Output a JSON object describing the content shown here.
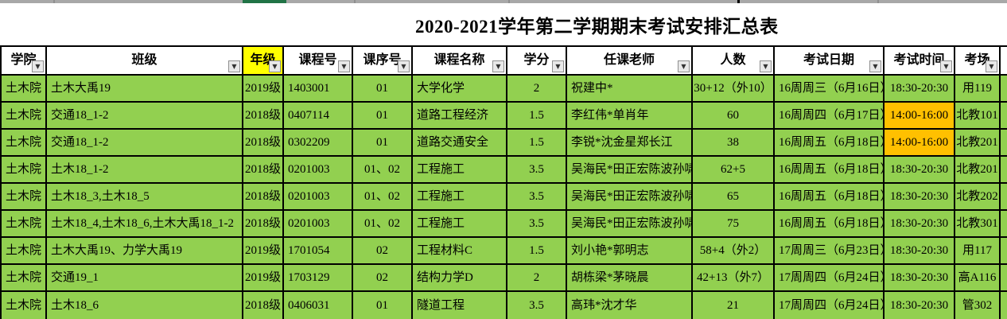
{
  "title": "2020-2021学年第二学期期末考试安排汇总表",
  "colors": {
    "row_green": "#92D050",
    "time_orange": "#FFC000",
    "grade_yellow": "#FFFF00",
    "strip_gray": "#A8A8A8",
    "active_column_green": "#217346",
    "border": "#000000"
  },
  "table": {
    "filter_icon": "▼",
    "columns": [
      {
        "key": "college",
        "label": "学院",
        "highlighted": false
      },
      {
        "key": "class",
        "label": "班级",
        "highlighted": false
      },
      {
        "key": "grade",
        "label": "年级",
        "highlighted": true
      },
      {
        "key": "course-id",
        "label": "课程号",
        "highlighted": false
      },
      {
        "key": "course-seq",
        "label": "课序号",
        "highlighted": false
      },
      {
        "key": "course-name",
        "label": "课程名称",
        "highlighted": false
      },
      {
        "key": "credits",
        "label": "学分",
        "highlighted": false
      },
      {
        "key": "teacher",
        "label": "任课老师",
        "highlighted": false
      },
      {
        "key": "count",
        "label": "人数",
        "highlighted": false
      },
      {
        "key": "exam-date",
        "label": "考试日期",
        "highlighted": false
      },
      {
        "key": "exam-time",
        "label": "考试时间",
        "highlighted": false
      },
      {
        "key": "exam-room",
        "label": "考场",
        "highlighted": false
      }
    ],
    "rows": [
      [
        "土木院",
        "土木大禹19",
        "2019级",
        "1403001",
        "01",
        "大学化学",
        "2",
        "祝建中*",
        "30+12（外10）",
        "16周周三（6月16日）",
        "18:30-20:30",
        "用119"
      ],
      [
        "土木院",
        "交通18_1-2",
        "2018级",
        "0407114",
        "01",
        "道路工程经济",
        "1.5",
        "李红伟*单肖年",
        "60",
        "16周周四（6月17日）",
        "14:00-16:00",
        "北教101"
      ],
      [
        "土木院",
        "交通18_1-2",
        "2018级",
        "0302209",
        "01",
        "道路交通安全",
        "1.5",
        "李锐*沈金星郑长江",
        "38",
        "16周周五（6月18日）",
        "14:00-16:00",
        "北教201"
      ],
      [
        "土木院",
        "土木18_1-2",
        "2018级",
        "0201003",
        "01、02",
        "工程施工",
        "3.5",
        "吴海民*田正宏陈波孙啸",
        "62+5",
        "16周周五（6月18日）",
        "18:30-20:30",
        "北教201"
      ],
      [
        "土木院",
        "土木18_3,土木18_5",
        "2018级",
        "0201003",
        "01、02",
        "工程施工",
        "3.5",
        "吴海民*田正宏陈波孙啸",
        "65",
        "16周周五（6月18日）",
        "18:30-20:30",
        "北教202"
      ],
      [
        "土木院",
        "土木18_4,土木18_6,土木大禹18_1-2",
        "2018级",
        "0201003",
        "01、02",
        "工程施工",
        "3.5",
        "吴海民*田正宏陈波孙啸",
        "75",
        "16周周五（6月18日）",
        "18:30-20:30",
        "北教301"
      ],
      [
        "土木院",
        "土木大禹19、力学大禹19",
        "2019级",
        "1701054",
        "02",
        "工程材料C",
        "1.5",
        "刘小艳*郭明志",
        "58+4（外2）",
        "17周周三（6月23日）",
        "18:30-20:30",
        "用117"
      ],
      [
        "土木院",
        "交通19_1",
        "2019级",
        "1703129",
        "02",
        "结构力学D",
        "2",
        "胡栋梁*茅晓晨",
        "42+13（外7）",
        "17周周四（6月24日）",
        "18:30-20:30",
        "高A116"
      ],
      [
        "土木院",
        "土木18_6",
        "2018级",
        "0406031",
        "01",
        "隧道工程",
        "3.5",
        "高玮*沈才华",
        "21",
        "17周周四（6月24日）",
        "18:30-20:30",
        "管302"
      ]
    ],
    "orange_time_rows": [
      1,
      2
    ]
  }
}
